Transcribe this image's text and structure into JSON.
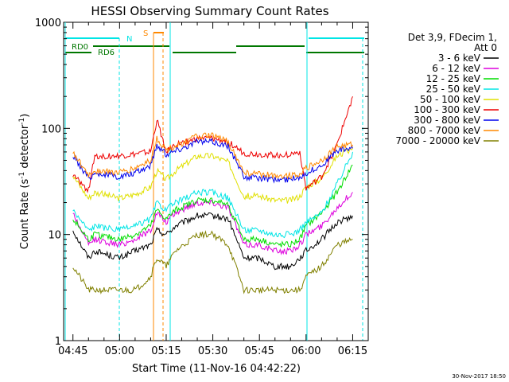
{
  "chart_data": {
    "type": "line",
    "title": "HESSI Observing Summary Count Rates",
    "xlabel": "Start Time (11-Nov-16 04:42:22)",
    "ylabel_main": "Count Rate (s",
    "ylabel_sup1": "-1",
    "ylabel_mid": " detector",
    "ylabel_sup2": "-1",
    "ylabel_end": ")",
    "yscale": "log",
    "ylim": [
      1,
      1000
    ],
    "xlim": [
      "04:42",
      "06:20"
    ],
    "x_ticks": [
      "04:45",
      "05:00",
      "05:15",
      "05:30",
      "05:45",
      "06:00",
      "06:15"
    ],
    "y_ticks": [
      "1",
      "10",
      "100",
      "1000"
    ],
    "legend_header_1": "Det 3,9, FDecim 1,",
    "legend_header_2": "Att 0",
    "legend_position": "right",
    "series": [
      {
        "name": "3 - 6 keV",
        "color": "#000000",
        "x": [
          "04:45",
          "04:50",
          "04:52",
          "05:00",
          "05:05",
          "05:10",
          "05:12",
          "05:15",
          "05:18",
          "05:25",
          "05:30",
          "05:35",
          "05:40",
          "05:45",
          "05:50",
          "05:55",
          "05:58",
          "06:00",
          "06:05",
          "06:10",
          "06:15"
        ],
        "y": [
          11,
          6,
          7,
          6,
          7,
          8,
          11,
          10,
          12,
          15,
          15,
          14,
          6,
          6,
          5,
          5,
          6,
          7,
          9,
          13,
          15
        ]
      },
      {
        "name": "6 - 12 keV",
        "color": "#dd00dd",
        "x": [
          "04:45",
          "04:50",
          "04:52",
          "05:00",
          "05:05",
          "05:10",
          "05:12",
          "05:15",
          "05:18",
          "05:25",
          "05:30",
          "05:35",
          "05:40",
          "05:45",
          "05:50",
          "05:55",
          "05:58",
          "06:00",
          "06:05",
          "06:10",
          "06:15"
        ],
        "y": [
          16,
          8,
          9,
          8,
          9,
          11,
          16,
          13,
          16,
          20,
          20,
          18,
          8,
          8,
          7,
          7,
          8,
          10,
          12,
          18,
          25
        ]
      },
      {
        "name": "12 - 25 keV",
        "color": "#00dd00",
        "x": [
          "04:45",
          "04:50",
          "04:52",
          "05:00",
          "05:05",
          "05:10",
          "05:12",
          "05:15",
          "05:18",
          "05:25",
          "05:30",
          "05:35",
          "05:40",
          "05:45",
          "05:50",
          "05:55",
          "05:58",
          "06:00",
          "06:05",
          "06:10",
          "06:15"
        ],
        "y": [
          14,
          9,
          10,
          9,
          10,
          12,
          17,
          14,
          17,
          21,
          21,
          19,
          9,
          9,
          8,
          8,
          9,
          12,
          16,
          25,
          45
        ]
      },
      {
        "name": "25 - 50 keV",
        "color": "#00e5e5",
        "x": [
          "04:45",
          "04:50",
          "04:52",
          "05:00",
          "05:05",
          "05:10",
          "05:12",
          "05:15",
          "05:18",
          "05:25",
          "05:30",
          "05:35",
          "05:40",
          "05:45",
          "05:50",
          "05:55",
          "05:58",
          "06:00",
          "06:05",
          "06:10",
          "06:15"
        ],
        "y": [
          17,
          11,
          12,
          11,
          12,
          14,
          20,
          17,
          20,
          25,
          25,
          22,
          11,
          11,
          10,
          10,
          11,
          13,
          16,
          30,
          60
        ]
      },
      {
        "name": "50 - 100 keV",
        "color": "#e0e000",
        "x": [
          "04:45",
          "04:50",
          "04:52",
          "05:00",
          "05:05",
          "05:10",
          "05:12",
          "05:15",
          "05:18",
          "05:25",
          "05:30",
          "05:35",
          "05:40",
          "05:45",
          "05:50",
          "05:55",
          "05:58",
          "06:00",
          "06:05",
          "06:10",
          "06:15"
        ],
        "y": [
          36,
          22,
          25,
          22,
          24,
          28,
          40,
          33,
          40,
          55,
          55,
          48,
          23,
          23,
          21,
          21,
          23,
          28,
          34,
          55,
          65
        ]
      },
      {
        "name": "100 - 300 keV",
        "color": "#ee0000",
        "x": [
          "04:45",
          "04:50",
          "04:52",
          "05:00",
          "05:05",
          "05:10",
          "05:12",
          "05:15",
          "05:18",
          "05:25",
          "05:30",
          "05:35",
          "05:40",
          "05:45",
          "05:50",
          "05:55",
          "05:58",
          "06:00",
          "06:05",
          "06:10",
          "06:15"
        ],
        "y": [
          36,
          26,
          55,
          55,
          57,
          60,
          120,
          60,
          70,
          80,
          80,
          75,
          58,
          57,
          56,
          57,
          60,
          27,
          35,
          70,
          200
        ]
      },
      {
        "name": "300 - 800 keV",
        "color": "#0000ee",
        "x": [
          "04:45",
          "04:50",
          "04:52",
          "05:00",
          "05:05",
          "05:10",
          "05:12",
          "05:15",
          "05:18",
          "05:25",
          "05:30",
          "05:35",
          "05:40",
          "05:45",
          "05:50",
          "05:55",
          "05:58",
          "06:00",
          "06:05",
          "06:10",
          "06:15"
        ],
        "y": [
          55,
          34,
          38,
          35,
          38,
          45,
          70,
          57,
          62,
          75,
          75,
          68,
          35,
          34,
          33,
          33,
          35,
          38,
          45,
          62,
          65
        ]
      },
      {
        "name": "800 - 7000 keV",
        "color": "#ff8800",
        "x": [
          "04:45",
          "04:50",
          "04:52",
          "05:00",
          "05:05",
          "05:10",
          "05:12",
          "05:15",
          "05:18",
          "05:25",
          "05:30",
          "05:35",
          "05:40",
          "05:45",
          "05:50",
          "05:55",
          "05:58",
          "06:00",
          "06:05",
          "06:10",
          "06:15"
        ],
        "y": [
          60,
          36,
          40,
          38,
          42,
          50,
          80,
          62,
          68,
          85,
          85,
          75,
          38,
          37,
          36,
          36,
          38,
          42,
          50,
          67,
          70
        ]
      },
      {
        "name": "7000 - 20000 keV",
        "color": "#808000",
        "x": [
          "04:45",
          "04:50",
          "04:52",
          "05:00",
          "05:05",
          "05:10",
          "05:12",
          "05:15",
          "05:18",
          "05:25",
          "05:30",
          "05:35",
          "05:40",
          "05:45",
          "05:50",
          "05:55",
          "05:58",
          "06:00",
          "06:05",
          "06:10",
          "06:15"
        ],
        "y": [
          5,
          3,
          3,
          3,
          3,
          4,
          6,
          5,
          7,
          10,
          10,
          8,
          3,
          3,
          3,
          3,
          3,
          4,
          5,
          8,
          9
        ]
      }
    ],
    "flags": [
      {
        "label": "N",
        "color": "#00e5e5"
      },
      {
        "label": "S",
        "color": "#ff8800"
      },
      {
        "label": "RD0",
        "color": "#007700"
      },
      {
        "label": "RD6",
        "color": "#007700"
      }
    ],
    "footer_date": "30-Nov-2017 18:50"
  }
}
